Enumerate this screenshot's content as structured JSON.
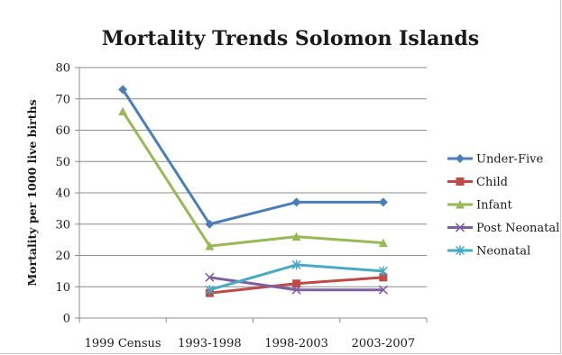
{
  "chart_data": {
    "type": "line",
    "title": "Mortality Trends Solomon Islands",
    "xlabel": "",
    "ylabel": "Mortality per 1000 live births",
    "ylim": [
      0,
      80
    ],
    "yticks": [
      0,
      10,
      20,
      30,
      40,
      50,
      60,
      70,
      80
    ],
    "grid": true,
    "legend": "right",
    "categories": [
      "1999 Census",
      "1993-1998",
      "1998-2003",
      "2003-2007"
    ],
    "series": [
      {
        "name": "Under-Five",
        "color": "#4a7ebb",
        "marker": "diamond",
        "values": [
          73,
          30,
          37,
          37
        ]
      },
      {
        "name": "Child",
        "color": "#be4b48",
        "marker": "square",
        "values": [
          null,
          8,
          11,
          13
        ]
      },
      {
        "name": "Infant",
        "color": "#98b954",
        "marker": "triangle",
        "values": [
          66,
          23,
          26,
          24
        ]
      },
      {
        "name": "Post Neonatal",
        "color": "#7d60a0",
        "marker": "x",
        "values": [
          null,
          13,
          9,
          9
        ]
      },
      {
        "name": "Neonatal",
        "color": "#46aac5",
        "marker": "star",
        "values": [
          null,
          9,
          17,
          15
        ]
      }
    ]
  }
}
